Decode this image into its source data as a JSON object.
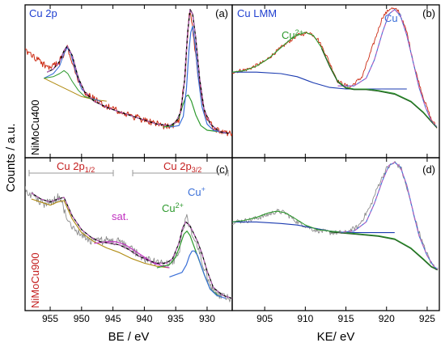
{
  "ylabel": "Counts / a.u.",
  "colors": {
    "raw_data": "#cc2a12",
    "raw_data_lower": "#8c8c8c",
    "envelope": "#000000",
    "cu_plus": "#3a6fd8",
    "cu_2plus": "#2e9a2e",
    "satellite": "#c030c0",
    "fit_overlay": "#c060c0",
    "background_lower": "#b08a10",
    "background_lmm": "#1a3ab0",
    "background_lmm_lower": "#1e5a1e",
    "sample_red": "#c41e1e"
  },
  "chart_data": [
    {
      "panel": "(a)",
      "type": "line",
      "title": "Cu 2p",
      "sample": "NiMoCu400",
      "xlabel": "BE / eV",
      "xlim": [
        959,
        926
      ],
      "x_reversed": true,
      "xticks": [
        955,
        950,
        945,
        940,
        935,
        930
      ],
      "series": [
        {
          "name": "data",
          "x": [
            959,
            957,
            955,
            953.5,
            952.3,
            951,
            949.5,
            947,
            944,
            941,
            938,
            936,
            934.5,
            933.5,
            932.8,
            932.3,
            931.5,
            930.5,
            929,
            927,
            926
          ],
          "y": [
            0.7,
            0.64,
            0.58,
            0.63,
            0.72,
            0.56,
            0.42,
            0.36,
            0.3,
            0.26,
            0.22,
            0.2,
            0.24,
            0.55,
            0.98,
            0.85,
            0.55,
            0.3,
            0.19,
            0.16,
            0.15
          ]
        },
        {
          "name": "envelope",
          "x": [
            955.5,
            954.5,
            953.5,
            952.8,
            952.3,
            951.5,
            950.5,
            949.5,
            948,
            946,
            944,
            941,
            938,
            936,
            935,
            934.2,
            933.6,
            933.1,
            932.7,
            932.3,
            931.8,
            931.2,
            930.5,
            929.5,
            928,
            926.5
          ],
          "y": [
            0.56,
            0.58,
            0.63,
            0.7,
            0.73,
            0.67,
            0.52,
            0.43,
            0.37,
            0.33,
            0.3,
            0.26,
            0.22,
            0.21,
            0.23,
            0.3,
            0.5,
            0.82,
            0.97,
            0.94,
            0.78,
            0.52,
            0.32,
            0.22,
            0.17,
            0.16
          ]
        },
        {
          "name": "Cu+",
          "x": [
            936,
            934.5,
            933.8,
            933.3,
            932.9,
            932.6,
            932.3,
            931.9,
            931.4,
            930.8,
            930,
            929,
            927
          ],
          "y": [
            0.2,
            0.21,
            0.27,
            0.45,
            0.7,
            0.82,
            0.86,
            0.74,
            0.52,
            0.33,
            0.22,
            0.18,
            0.16
          ]
        },
        {
          "name": "Cu2+",
          "x": [
            937,
            935.5,
            934.5,
            933.9,
            933.4,
            933,
            932.5,
            931.8,
            931,
            930,
            928,
            927
          ],
          "y": [
            0.2,
            0.21,
            0.26,
            0.34,
            0.4,
            0.41,
            0.37,
            0.28,
            0.21,
            0.18,
            0.17,
            0.16
          ]
        },
        {
          "name": "Cu+ satellite",
          "x": [
            956,
            954.5,
            953.5,
            952.8,
            952.3,
            951.7,
            951,
            950,
            948.5,
            947
          ],
          "y": [
            0.52,
            0.55,
            0.6,
            0.68,
            0.72,
            0.68,
            0.57,
            0.45,
            0.39,
            0.37
          ]
        },
        {
          "name": "Cu2+ satellite",
          "x": [
            956,
            954.5,
            953.5,
            952.8,
            952.2,
            951.5,
            950.5,
            949.5,
            948
          ],
          "y": [
            0.52,
            0.53,
            0.55,
            0.57,
            0.55,
            0.5,
            0.44,
            0.4,
            0.38
          ]
        },
        {
          "name": "background",
          "x": [
            956,
            954,
            952,
            950,
            948,
            946
          ],
          "y": [
            0.52,
            0.48,
            0.44,
            0.4,
            0.38,
            0.37
          ]
        }
      ]
    },
    {
      "panel": "(b)",
      "type": "line",
      "title": "Cu LMM",
      "xlim": [
        901,
        926.5
      ],
      "xticks": [
        905,
        910,
        915,
        920,
        925
      ],
      "annotations": [
        "Cu2+",
        "Cu+"
      ],
      "series": [
        {
          "name": "data",
          "x": [
            901,
            903,
            905,
            907,
            909,
            910.5,
            911.5,
            912.5,
            914,
            915.5,
            917,
            918.5,
            919.5,
            920.5,
            921.5,
            922.5,
            923.5,
            924.5,
            925.5,
            926.2
          ],
          "y": [
            0.56,
            0.58,
            0.63,
            0.72,
            0.8,
            0.82,
            0.78,
            0.68,
            0.5,
            0.46,
            0.53,
            0.76,
            0.92,
            0.98,
            0.96,
            0.82,
            0.58,
            0.4,
            0.25,
            0.2
          ]
        },
        {
          "name": "Cu+",
          "x": [
            914,
            916,
            917.5,
            918.5,
            919.5,
            920.3,
            921,
            921.7,
            922.5,
            923.3,
            924,
            924.8,
            925.5,
            926.2
          ],
          "y": [
            0.47,
            0.47,
            0.52,
            0.64,
            0.82,
            0.94,
            0.97,
            0.93,
            0.8,
            0.62,
            0.46,
            0.33,
            0.24,
            0.2
          ]
        },
        {
          "name": "Cu2+",
          "x": [
            901,
            902.5,
            904,
            905.5,
            907,
            908.5,
            910,
            911,
            912,
            913,
            914,
            915,
            916,
            917.5,
            919,
            921,
            923,
            924.5,
            925.5,
            926.2
          ],
          "y": [
            0.56,
            0.57,
            0.6,
            0.65,
            0.72,
            0.79,
            0.82,
            0.8,
            0.72,
            0.6,
            0.5,
            0.46,
            0.45,
            0.45,
            0.44,
            0.42,
            0.37,
            0.3,
            0.24,
            0.2
          ]
        },
        {
          "name": "background",
          "x": [
            901,
            904,
            907,
            909,
            911,
            913,
            915,
            917,
            919,
            921,
            922.5
          ],
          "y": [
            0.56,
            0.56,
            0.55,
            0.53,
            0.49,
            0.46,
            0.45,
            0.45,
            0.45,
            0.45,
            0.45
          ]
        }
      ]
    },
    {
      "panel": "(c)",
      "type": "line",
      "sample": "NiMoCu900",
      "xlabel": "BE / eV",
      "xlim": [
        959,
        926
      ],
      "x_reversed": true,
      "xticks": [
        955,
        950,
        945,
        940,
        935,
        930
      ],
      "annotations": [
        "Cu 2p1/2",
        "Cu 2p3/2",
        "sat.",
        "Cu2+",
        "Cu+"
      ],
      "series": [
        {
          "name": "data",
          "x": [
            959,
            957.5,
            956,
            954.5,
            953.5,
            952.5,
            951.5,
            950,
            948,
            946,
            944,
            942,
            940,
            938,
            936,
            934.5,
            933.8,
            933.3,
            932.8,
            932.2,
            931.5,
            930.5,
            929.5,
            928,
            926
          ],
          "y": [
            0.8,
            0.74,
            0.7,
            0.72,
            0.75,
            0.62,
            0.55,
            0.5,
            0.45,
            0.46,
            0.45,
            0.4,
            0.34,
            0.31,
            0.3,
            0.37,
            0.54,
            0.62,
            0.55,
            0.48,
            0.42,
            0.28,
            0.15,
            0.1,
            0.08
          ]
        },
        {
          "name": "envelope",
          "x": [
            958,
            956.5,
            955,
            953.8,
            952.8,
            951.5,
            950,
            948.5,
            947,
            945.5,
            944,
            942.5,
            941,
            939.5,
            938,
            936.5,
            935.5,
            934.5,
            933.9,
            933.4,
            932.8,
            932.2,
            931.5,
            930.8,
            930,
            929,
            927.5,
            926
          ],
          "y": [
            0.77,
            0.73,
            0.71,
            0.73,
            0.74,
            0.62,
            0.53,
            0.48,
            0.45,
            0.44,
            0.43,
            0.4,
            0.36,
            0.33,
            0.31,
            0.31,
            0.34,
            0.44,
            0.54,
            0.58,
            0.56,
            0.51,
            0.45,
            0.37,
            0.26,
            0.15,
            0.1,
            0.08
          ]
        },
        {
          "name": "Cu+",
          "x": [
            936,
            934,
            933.3,
            932.8,
            932.4,
            932,
            931.5,
            931,
            930.3,
            929.5,
            928.5,
            927
          ],
          "y": [
            0.22,
            0.25,
            0.3,
            0.36,
            0.39,
            0.39,
            0.36,
            0.3,
            0.22,
            0.14,
            0.1,
            0.08
          ]
        },
        {
          "name": "Cu2+",
          "x": [
            938,
            936,
            935,
            934.2,
            933.7,
            933.2,
            932.7,
            932,
            931.2,
            930.5,
            929.5,
            928
          ],
          "y": [
            0.28,
            0.3,
            0.35,
            0.44,
            0.5,
            0.52,
            0.49,
            0.41,
            0.32,
            0.24,
            0.14,
            0.09
          ]
        },
        {
          "name": "satellite",
          "x": [
            948,
            946,
            944.5,
            943,
            941.5,
            940,
            938.5,
            937,
            936
          ],
          "y": [
            0.44,
            0.45,
            0.45,
            0.43,
            0.39,
            0.35,
            0.31,
            0.29,
            0.28
          ]
        },
        {
          "name": "background",
          "x": [
            958,
            956.5,
            955,
            953.8,
            952.8,
            951.5,
            950,
            948,
            946,
            944,
            942,
            940,
            938,
            936
          ],
          "y": [
            0.73,
            0.71,
            0.69,
            0.71,
            0.72,
            0.6,
            0.51,
            0.45,
            0.41,
            0.38,
            0.34,
            0.31,
            0.29,
            0.28
          ]
        }
      ]
    },
    {
      "panel": "(d)",
      "type": "line",
      "xlabel": "KE/ eV",
      "xlim": [
        901,
        926.5
      ],
      "xticks": [
        905,
        910,
        915,
        920,
        925
      ],
      "series": [
        {
          "name": "data",
          "x": [
            901,
            903,
            905,
            906.5,
            907.5,
            909,
            911,
            913,
            915,
            916.5,
            918,
            919,
            920,
            921,
            921.8,
            922.5,
            923.5,
            924.5,
            925.5,
            926.3
          ],
          "y": [
            0.58,
            0.59,
            0.62,
            0.65,
            0.64,
            0.58,
            0.53,
            0.51,
            0.51,
            0.55,
            0.68,
            0.82,
            0.93,
            0.97,
            0.93,
            0.8,
            0.6,
            0.43,
            0.31,
            0.27
          ]
        },
        {
          "name": "Cu+",
          "x": [
            914,
            916,
            917.5,
            918.5,
            919.5,
            920.3,
            921,
            921.7,
            922.5,
            923.3,
            924,
            925,
            925.8,
            926.3
          ],
          "y": [
            0.51,
            0.52,
            0.58,
            0.7,
            0.85,
            0.95,
            0.97,
            0.94,
            0.82,
            0.64,
            0.49,
            0.36,
            0.29,
            0.27
          ]
        },
        {
          "name": "Cu2+",
          "x": [
            901,
            902.5,
            904,
            905.5,
            906.5,
            907.5,
            908.5,
            910,
            911.5,
            913,
            915,
            917,
            919,
            921,
            923,
            924.5,
            925.5,
            926.3
          ],
          "y": [
            0.58,
            0.59,
            0.61,
            0.64,
            0.65,
            0.64,
            0.61,
            0.56,
            0.53,
            0.52,
            0.51,
            0.5,
            0.49,
            0.47,
            0.41,
            0.34,
            0.29,
            0.27
          ]
        },
        {
          "name": "background",
          "x": [
            901,
            904,
            907,
            909,
            911,
            913,
            915,
            917,
            919,
            921
          ],
          "y": [
            0.58,
            0.58,
            0.57,
            0.56,
            0.54,
            0.52,
            0.51,
            0.51,
            0.51,
            0.51
          ]
        }
      ]
    }
  ]
}
